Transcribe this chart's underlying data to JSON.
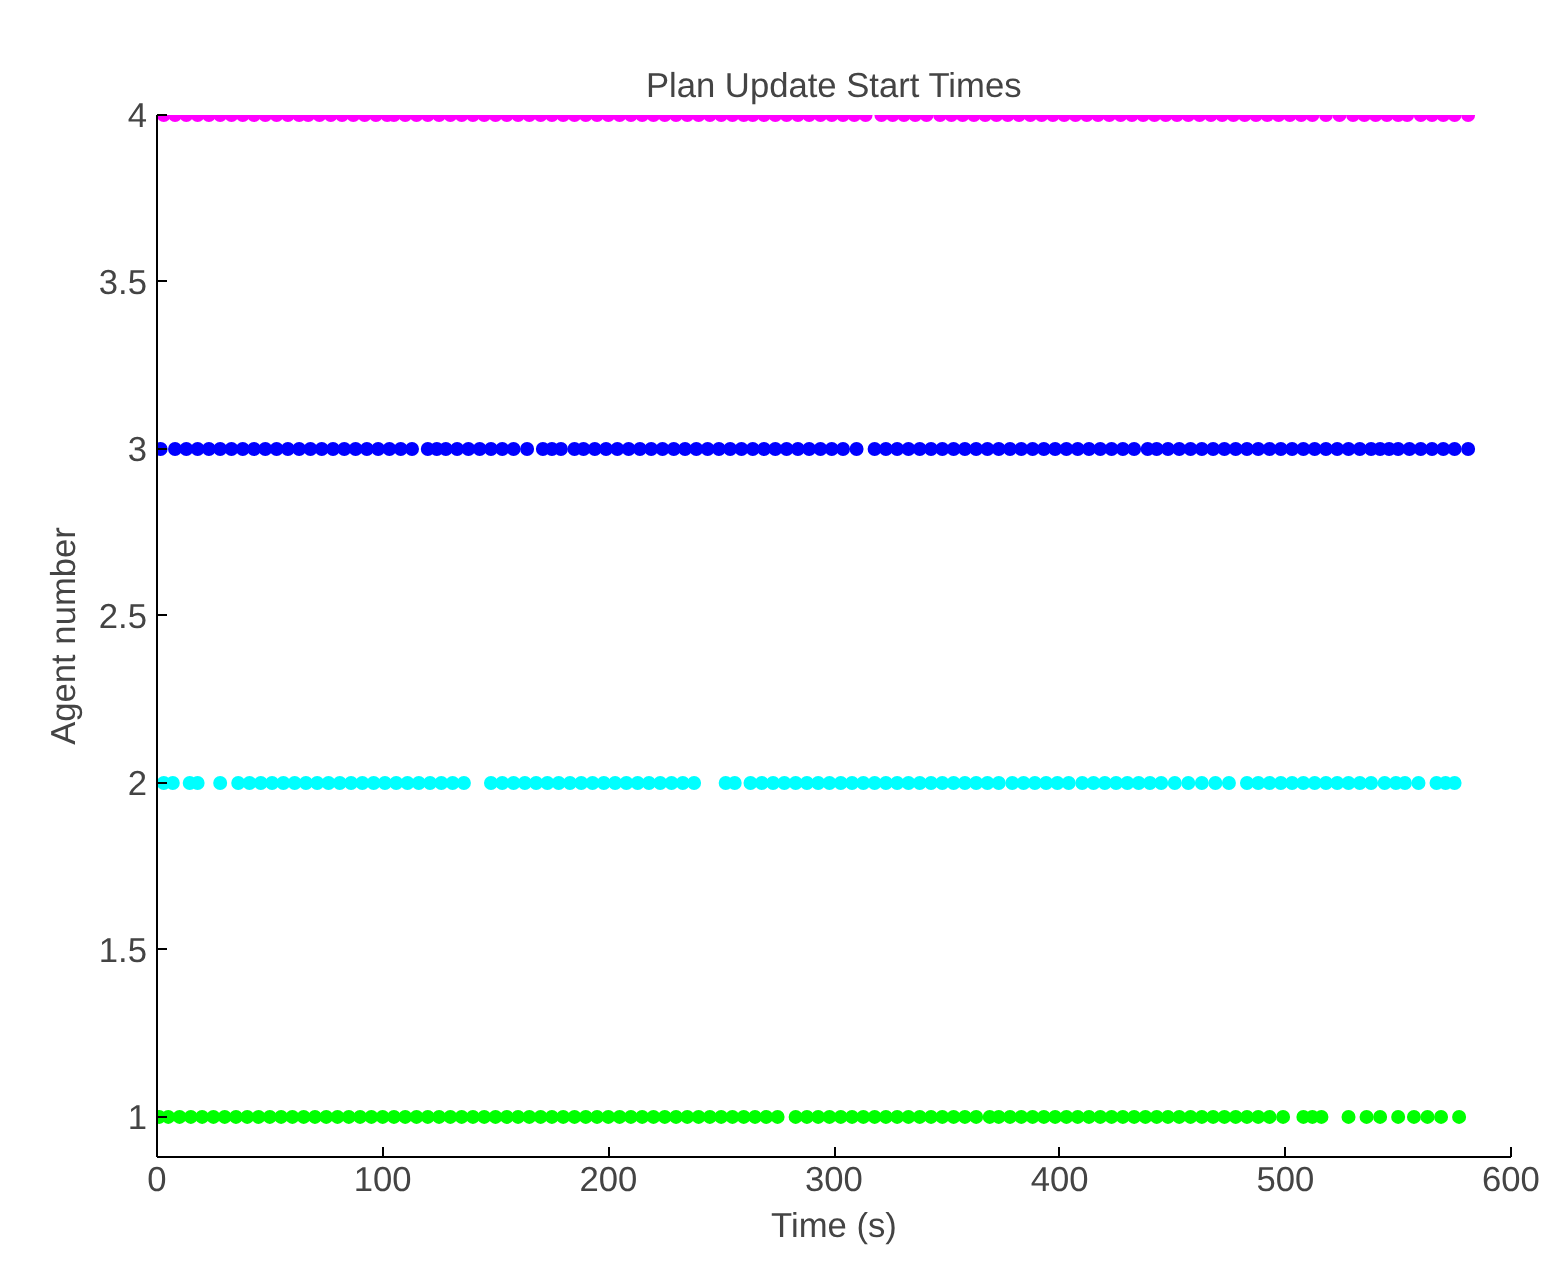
{
  "chart_data": {
    "type": "scatter",
    "title": "Plan Update Start Times",
    "xlabel": "Time (s)",
    "ylabel": "Agent number",
    "xlim": [
      0,
      600
    ],
    "xticks": [
      0,
      100,
      200,
      300,
      400,
      500,
      600
    ],
    "ylim": [
      0.88,
      4
    ],
    "yticks": [
      1,
      1.5,
      2,
      2.5,
      3,
      3.5,
      4
    ],
    "grid": false,
    "marker": "circle",
    "series": [
      {
        "color": "#00ff00",
        "x": [
          1,
          5,
          10,
          15,
          20,
          25,
          30,
          35,
          40,
          45,
          50,
          55,
          60,
          65,
          70,
          75,
          80,
          85,
          90,
          95,
          100,
          105,
          110,
          115,
          120,
          125,
          130,
          135,
          140,
          145,
          150,
          155,
          160,
          165,
          170,
          175,
          180,
          185,
          190,
          195,
          200,
          205,
          210,
          215,
          220,
          225,
          230,
          235,
          240,
          245,
          250,
          255,
          260,
          265,
          270,
          275,
          283,
          288,
          293,
          298,
          303,
          308,
          313,
          318,
          323,
          328,
          333,
          338,
          343,
          348,
          353,
          358,
          363,
          369,
          373,
          378,
          383,
          388,
          393,
          398,
          403,
          408,
          413,
          418,
          423,
          428,
          433,
          438,
          443,
          448,
          453,
          458,
          463,
          468,
          473,
          478,
          483,
          488,
          493,
          499,
          508,
          512,
          516,
          528,
          536,
          542,
          550,
          557,
          563,
          569,
          577
        ],
        "values": [
          1,
          1,
          1,
          1,
          1,
          1,
          1,
          1,
          1,
          1,
          1,
          1,
          1,
          1,
          1,
          1,
          1,
          1,
          1,
          1,
          1,
          1,
          1,
          1,
          1,
          1,
          1,
          1,
          1,
          1,
          1,
          1,
          1,
          1,
          1,
          1,
          1,
          1,
          1,
          1,
          1,
          1,
          1,
          1,
          1,
          1,
          1,
          1,
          1,
          1,
          1,
          1,
          1,
          1,
          1,
          1,
          1,
          1,
          1,
          1,
          1,
          1,
          1,
          1,
          1,
          1,
          1,
          1,
          1,
          1,
          1,
          1,
          1,
          1,
          1,
          1,
          1,
          1,
          1,
          1,
          1,
          1,
          1,
          1,
          1,
          1,
          1,
          1,
          1,
          1,
          1,
          1,
          1,
          1,
          1,
          1,
          1,
          1,
          1,
          1,
          1,
          1,
          1,
          1,
          1,
          1,
          1,
          1,
          1,
          1,
          1
        ]
      },
      {
        "color": "#00ffff",
        "x": [
          3,
          7,
          14.5,
          18,
          28,
          36,
          41,
          46,
          51,
          56,
          61,
          66,
          71,
          76,
          81,
          86,
          91,
          96,
          101,
          106,
          111,
          116,
          121,
          126,
          131,
          136,
          148,
          153,
          158,
          163,
          168,
          173,
          178,
          183,
          188,
          193,
          198,
          203,
          208,
          213,
          218,
          223,
          228,
          233,
          238,
          252,
          256,
          263,
          268,
          273,
          278,
          283,
          288,
          293,
          298,
          303,
          308,
          313,
          318,
          323,
          328,
          333,
          338,
          343,
          348,
          353,
          358,
          363,
          368,
          373,
          379,
          384,
          389,
          394,
          399,
          404,
          410,
          415,
          420,
          425,
          430,
          435,
          440,
          445,
          451,
          457,
          463,
          469,
          475,
          483,
          488,
          493,
          498,
          503,
          508,
          513,
          518,
          523,
          528,
          533,
          538,
          544,
          549,
          553,
          559,
          567,
          571,
          575
        ],
        "values": [
          2,
          2,
          2,
          2,
          2,
          2,
          2,
          2,
          2,
          2,
          2,
          2,
          2,
          2,
          2,
          2,
          2,
          2,
          2,
          2,
          2,
          2,
          2,
          2,
          2,
          2,
          2,
          2,
          2,
          2,
          2,
          2,
          2,
          2,
          2,
          2,
          2,
          2,
          2,
          2,
          2,
          2,
          2,
          2,
          2,
          2,
          2,
          2,
          2,
          2,
          2,
          2,
          2,
          2,
          2,
          2,
          2,
          2,
          2,
          2,
          2,
          2,
          2,
          2,
          2,
          2,
          2,
          2,
          2,
          2,
          2,
          2,
          2,
          2,
          2,
          2,
          2,
          2,
          2,
          2,
          2,
          2,
          2,
          2,
          2,
          2,
          2,
          2,
          2,
          2,
          2,
          2,
          2,
          2,
          2,
          2,
          2,
          2,
          2,
          2,
          2,
          2,
          2,
          2,
          2,
          2,
          2,
          2
        ]
      },
      {
        "color": "#0000ff",
        "x": [
          1.6,
          8,
          13,
          18,
          23,
          28,
          33,
          38,
          43,
          48,
          53,
          58,
          63,
          68,
          73,
          78,
          83,
          88,
          93,
          98,
          103,
          108,
          113,
          120,
          124,
          128,
          133,
          138,
          143,
          148,
          153,
          158,
          164,
          171,
          175,
          179,
          185,
          189,
          194,
          199,
          204,
          209,
          214,
          219,
          224,
          229,
          234,
          239,
          244,
          249,
          254,
          259,
          264,
          269,
          274,
          279,
          284,
          289,
          294,
          299,
          304,
          310,
          318,
          323,
          328,
          333,
          338,
          343,
          348,
          353,
          358,
          363,
          368,
          373,
          378,
          383,
          388,
          393,
          398,
          403,
          408,
          413,
          418,
          423,
          428,
          433,
          439,
          443,
          448,
          453,
          458,
          463,
          468,
          473,
          478,
          483,
          488,
          493,
          498,
          503,
          508,
          513,
          518,
          523,
          528,
          533,
          538,
          542,
          546,
          550,
          555,
          560,
          565,
          570,
          575,
          581
        ],
        "values": [
          3,
          3,
          3,
          3,
          3,
          3,
          3,
          3,
          3,
          3,
          3,
          3,
          3,
          3,
          3,
          3,
          3,
          3,
          3,
          3,
          3,
          3,
          3,
          3,
          3,
          3,
          3,
          3,
          3,
          3,
          3,
          3,
          3,
          3,
          3,
          3,
          3,
          3,
          3,
          3,
          3,
          3,
          3,
          3,
          3,
          3,
          3,
          3,
          3,
          3,
          3,
          3,
          3,
          3,
          3,
          3,
          3,
          3,
          3,
          3,
          3,
          3,
          3,
          3,
          3,
          3,
          3,
          3,
          3,
          3,
          3,
          3,
          3,
          3,
          3,
          3,
          3,
          3,
          3,
          3,
          3,
          3,
          3,
          3,
          3,
          3,
          3,
          3,
          3,
          3,
          3,
          3,
          3,
          3,
          3,
          3,
          3,
          3,
          3,
          3,
          3,
          3,
          3,
          3,
          3,
          3,
          3,
          3,
          3,
          3,
          3,
          3,
          3,
          3,
          3,
          3
        ]
      },
      {
        "color": "#ff00ff",
        "x": [
          3,
          8,
          13,
          18,
          23,
          28,
          33,
          38,
          43,
          48,
          53,
          58,
          63,
          67,
          72,
          77,
          82,
          87,
          92,
          97,
          102,
          105,
          110,
          115,
          120,
          125,
          130,
          135,
          140,
          145,
          150,
          155,
          160,
          165,
          170,
          175,
          180,
          185,
          190,
          195,
          200,
          205,
          210,
          215,
          220,
          225,
          230,
          235,
          240,
          245,
          250,
          255,
          260,
          264,
          269,
          274,
          279,
          284,
          289,
          294,
          299,
          304,
          309,
          314,
          321,
          326,
          331,
          336,
          341,
          347,
          352,
          357,
          362,
          367,
          372,
          377,
          382,
          387,
          392,
          397,
          402,
          407,
          412,
          417,
          422,
          427,
          432,
          437,
          442,
          447,
          452,
          457,
          462,
          467,
          472,
          477,
          482,
          487,
          492,
          497,
          502,
          507,
          512,
          518,
          524,
          530,
          535,
          540,
          545,
          550,
          554,
          560,
          565,
          570,
          575,
          581
        ],
        "values": [
          4,
          4,
          4,
          4,
          4,
          4,
          4,
          4,
          4,
          4,
          4,
          4,
          4,
          4,
          4,
          4,
          4,
          4,
          4,
          4,
          4,
          4,
          4,
          4,
          4,
          4,
          4,
          4,
          4,
          4,
          4,
          4,
          4,
          4,
          4,
          4,
          4,
          4,
          4,
          4,
          4,
          4,
          4,
          4,
          4,
          4,
          4,
          4,
          4,
          4,
          4,
          4,
          4,
          4,
          4,
          4,
          4,
          4,
          4,
          4,
          4,
          4,
          4,
          4,
          4,
          4,
          4,
          4,
          4,
          4,
          4,
          4,
          4,
          4,
          4,
          4,
          4,
          4,
          4,
          4,
          4,
          4,
          4,
          4,
          4,
          4,
          4,
          4,
          4,
          4,
          4,
          4,
          4,
          4,
          4,
          4,
          4,
          4,
          4,
          4,
          4,
          4,
          4,
          4,
          4,
          4,
          4,
          4,
          4,
          4,
          4,
          4,
          4,
          4,
          4,
          4
        ]
      }
    ]
  }
}
